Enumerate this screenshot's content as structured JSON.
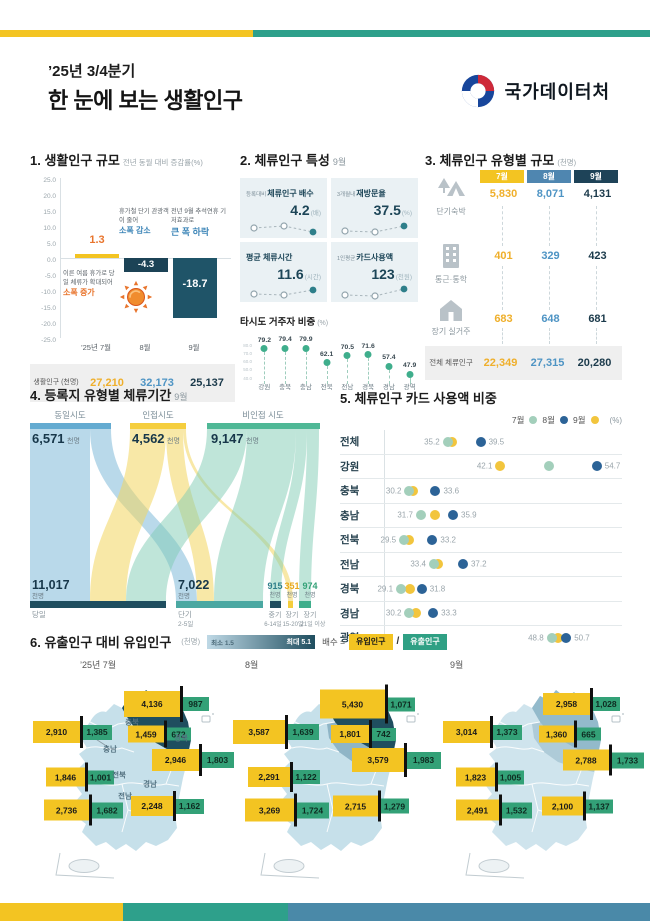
{
  "colors": {
    "yellow": "#F3C422",
    "navy": "#1C4356",
    "teal_dark": "#1F5468",
    "blue": "#4E94C4",
    "green": "#2FA084",
    "mint": "#A3CFBB",
    "stripe_teal": "#2EA08B",
    "stripe_blue": "#4A89A8"
  },
  "header": {
    "period": "’25년 3/4분기",
    "title": "한 눈에 보는 생활인구",
    "agency": "국가데이터처"
  },
  "section1": {
    "title": "1. 생활인구 규모",
    "subtitle": "전년 동월 대비 증감률(%)",
    "bar_labels": [
      "1.3",
      "-4.3",
      "-18.7"
    ],
    "categories": [
      "’25년 7월",
      "8월",
      "9월"
    ],
    "ann": {
      "jul_text": "이른 여름 휴가로 당일 체류가 확대되어",
      "jul_hl": "소폭 증가",
      "aug_text": "휴가철 단기 관광객이 줄어",
      "aug_hl": "소폭 감소",
      "sep_text": "전년 9월 추석연휴 기저효과로",
      "sep_hl": "큰 폭 하락"
    },
    "table_label": "생활인구 (천명)",
    "table_values": [
      "27,210",
      "32,173",
      "25,137"
    ]
  },
  "section2": {
    "title": "2. 체류인구 특성",
    "period": "9월",
    "cards": [
      {
        "prefix": "등록대비",
        "label": "체류인구 배수",
        "value": "4.2",
        "unit": "(배)"
      },
      {
        "prefix": "3개월내",
        "label": "재방문율",
        "value": "37.5",
        "unit": "(%)"
      },
      {
        "prefix": "",
        "label": "평균 체류시간",
        "value": "11.6",
        "unit": "(시간)"
      },
      {
        "prefix": "1인평균",
        "label": "카드사용액",
        "value": "123",
        "unit": "(천원)"
      }
    ],
    "loll_title": "타시도 거주자 비중",
    "loll_unit": "(%)"
  },
  "section3": {
    "title": "3. 체류인구 유형별 규모",
    "unit": "(천명)",
    "months": [
      "7월",
      "8월",
      "9월"
    ],
    "rows": [
      {
        "label": "단기숙박",
        "values": [
          "5,830",
          "8,071",
          "4,131"
        ]
      },
      {
        "label": "통근·통학",
        "values": [
          "401",
          "329",
          "423"
        ]
      },
      {
        "label": "장기 실거주",
        "values": [
          "683",
          "648",
          "681"
        ]
      }
    ],
    "total_label": "전체 체류인구",
    "total_values": [
      "22,349",
      "27,315",
      "20,280"
    ]
  },
  "section4": {
    "title": "4. 등록지 유형별 체류기간",
    "period": "9월",
    "src": [
      {
        "name": "동일시도",
        "value": "6,571",
        "unit": "천명"
      },
      {
        "name": "인접시도",
        "value": "4,562",
        "unit": "천명"
      },
      {
        "name": "비인접 시도",
        "value": "9,147",
        "unit": "천명"
      }
    ],
    "tgt": [
      {
        "value": "11,017",
        "unit": "천명",
        "label": "당일",
        "sub": ""
      },
      {
        "value": "7,022",
        "unit": "천명",
        "label": "단기",
        "sub": "2-5일"
      },
      {
        "value": "915",
        "unit": "천명",
        "label": "중기",
        "sub": "6-14일"
      },
      {
        "value": "351",
        "unit": "천명",
        "label": "장기",
        "sub": "15-20일"
      },
      {
        "value": "974",
        "unit": "천명",
        "label": "장기",
        "sub": "21일 이상"
      }
    ]
  },
  "section5": {
    "title": "5. 체류인구 카드 사용액 비중",
    "legend": [
      "7월",
      "8월",
      "9월"
    ],
    "unit": "(%)"
  },
  "section6": {
    "title": "6. 유출인구 대비 유입인구",
    "unit": "(천명)",
    "scale_min": "최소 1.5",
    "scale_max": "최대 5.1",
    "formula": "배수 =",
    "inflow_chip": "유입인구",
    "slash": "/",
    "outflow_chip": "유출인구",
    "months": [
      "’25년 7월",
      "8월",
      "9월"
    ]
  },
  "chart_data": [
    {
      "id": "population-change",
      "type": "bar",
      "title": "생활인구 규모",
      "subtitle": "전년 동월 대비 증감률(%)",
      "categories": [
        "’25년 7월",
        "8월",
        "9월"
      ],
      "values": [
        1.3,
        -4.3,
        -18.7
      ],
      "ylim": [
        -25,
        25
      ],
      "ytick_step": 5,
      "table": {
        "label": "생활인구(천명)",
        "values": [
          27210,
          32173,
          25137
        ]
      }
    },
    {
      "id": "stay-features",
      "type": "table",
      "period": "9월",
      "cards": [
        {
          "label": "등록대비 체류인구 배수",
          "value": 4.2,
          "unit": "배"
        },
        {
          "label": "3개월내 재방문율",
          "value": 37.5,
          "unit": "%"
        },
        {
          "label": "평균 체류시간",
          "value": 11.6,
          "unit": "시간"
        },
        {
          "label": "1인평균 카드사용액",
          "value": 123,
          "unit": "천원"
        }
      ]
    },
    {
      "id": "other-sido-share",
      "type": "lollipop",
      "title": "타시도 거주자 비중(%)",
      "categories": [
        "강원",
        "충북",
        "충남",
        "전북",
        "전남",
        "경북",
        "경남",
        "광역"
      ],
      "values": [
        79.2,
        79.4,
        79.9,
        62.1,
        70.5,
        71.6,
        57.4,
        47.9
      ],
      "ylim": [
        40,
        85
      ],
      "yticks": [
        80,
        70,
        60,
        50,
        40
      ]
    },
    {
      "id": "stay-type-size",
      "type": "table",
      "title": "체류인구 유형별 규모(천명)",
      "columns": [
        "7월",
        "8월",
        "9월"
      ],
      "rows": [
        {
          "name": "단기숙박",
          "values": [
            5830,
            8071,
            4131
          ]
        },
        {
          "name": "통근·통학",
          "values": [
            401,
            329,
            423
          ]
        },
        {
          "name": "장기 실거주",
          "values": [
            683,
            648,
            681
          ]
        },
        {
          "name": "전체 체류인구",
          "values": [
            22349,
            27315,
            20280
          ]
        }
      ]
    },
    {
      "id": "stay-duration-sankey",
      "type": "sankey",
      "period": "9월",
      "unit": "천명",
      "sources": [
        {
          "name": "동일시도",
          "value": 6571
        },
        {
          "name": "인접시도",
          "value": 4562
        },
        {
          "name": "비인접 시도",
          "value": 9147
        }
      ],
      "targets": [
        {
          "name": "당일",
          "value": 11017
        },
        {
          "name": "단기 2-5일",
          "value": 7022
        },
        {
          "name": "중기 6-14일",
          "value": 915
        },
        {
          "name": "장기 15-20일",
          "value": 351
        },
        {
          "name": "장기 21일 이상",
          "value": 974
        }
      ]
    },
    {
      "id": "card-usage-share",
      "type": "dot-range",
      "title": "체류인구 카드 사용액 비중(%)",
      "series": [
        "7월",
        "8월",
        "9월"
      ],
      "xlim": [
        27,
        58
      ],
      "rows": [
        {
          "name": "전체",
          "jul": 35.2,
          "aug": 39.5,
          "sep": 35.8,
          "min_label": "35.2",
          "max_label": "39.5"
        },
        {
          "name": "강원",
          "jul": 48.5,
          "aug": 54.7,
          "sep": 42.1,
          "min_label": "42.1",
          "max_label": "54.7"
        },
        {
          "name": "충북",
          "jul": 30.2,
          "aug": 33.6,
          "sep": 30.6,
          "min_label": "30.2",
          "max_label": "33.6"
        },
        {
          "name": "충남",
          "jul": 31.7,
          "aug": 35.9,
          "sep": 33.5,
          "min_label": "31.7",
          "max_label": "35.9"
        },
        {
          "name": "전북",
          "jul": 29.5,
          "aug": 33.2,
          "sep": 30.1,
          "min_label": "29.5",
          "max_label": "33.2"
        },
        {
          "name": "전남",
          "jul": 33.4,
          "aug": 37.2,
          "sep": 33.9,
          "min_label": "33.4",
          "max_label": "37.2"
        },
        {
          "name": "경북",
          "jul": 29.1,
          "aug": 31.8,
          "sep": 30.3,
          "min_label": "29.1",
          "max_label": "31.8"
        },
        {
          "name": "경남",
          "jul": 30.2,
          "aug": 33.3,
          "sep": 31.0,
          "min_label": "30.2",
          "max_label": "33.3"
        },
        {
          "name": "광역",
          "jul": 48.8,
          "aug": 50.7,
          "sep": 49.6,
          "min_label": "48.8",
          "max_label": "50.7"
        }
      ]
    },
    {
      "id": "inflow-outflow-map",
      "type": "map-table",
      "title": "유출인구 대비 유입인구(천명)",
      "scale": {
        "min": 1.5,
        "max": 5.1
      },
      "months": [
        {
          "month": "’25년 7월",
          "regions": [
            {
              "key": "gangwon",
              "name": "강원",
              "inflow": "4,136",
              "outflow": "987"
            },
            {
              "key": "chungbuk",
              "name": "충북",
              "inflow": "1,459",
              "outflow": "672"
            },
            {
              "key": "chungnam",
              "name": "충남",
              "inflow": "2,910",
              "outflow": "1,385"
            },
            {
              "key": "gyeongbuk",
              "name": "경북",
              "inflow": "2,946",
              "outflow": "1,803"
            },
            {
              "key": "jeonbuk",
              "name": "전북",
              "inflow": "1,846",
              "outflow": "1,001"
            },
            {
              "key": "jeonnam",
              "name": "전남",
              "inflow": "2,736",
              "outflow": "1,682"
            },
            {
              "key": "gyeongnam",
              "name": "경남",
              "inflow": "2,248",
              "outflow": "1,162"
            }
          ]
        },
        {
          "month": "8월",
          "regions": [
            {
              "key": "gangwon",
              "inflow": "5,430",
              "outflow": "1,071"
            },
            {
              "key": "chungbuk",
              "inflow": "1,801",
              "outflow": "742"
            },
            {
              "key": "chungnam",
              "inflow": "3,587",
              "outflow": "1,639"
            },
            {
              "key": "gyeongbuk",
              "inflow": "3,579",
              "outflow": "1,983"
            },
            {
              "key": "jeonbuk",
              "inflow": "2,291",
              "outflow": "1,122"
            },
            {
              "key": "jeonnam",
              "inflow": "3,269",
              "outflow": "1,724"
            },
            {
              "key": "gyeongnam",
              "inflow": "2,715",
              "outflow": "1,279"
            }
          ]
        },
        {
          "month": "9월",
          "regions": [
            {
              "key": "gangwon",
              "inflow": "2,958",
              "outflow": "1,028"
            },
            {
              "key": "chungbuk",
              "inflow": "1,360",
              "outflow": "665"
            },
            {
              "key": "chungnam",
              "inflow": "3,014",
              "outflow": "1,373"
            },
            {
              "key": "gyeongbuk",
              "inflow": "2,788",
              "outflow": "1,733"
            },
            {
              "key": "jeonbuk",
              "inflow": "1,823",
              "outflow": "1,005"
            },
            {
              "key": "jeonnam",
              "inflow": "2,491",
              "outflow": "1,532"
            },
            {
              "key": "gyeongnam",
              "inflow": "2,100",
              "outflow": "1,137"
            }
          ]
        }
      ]
    }
  ]
}
